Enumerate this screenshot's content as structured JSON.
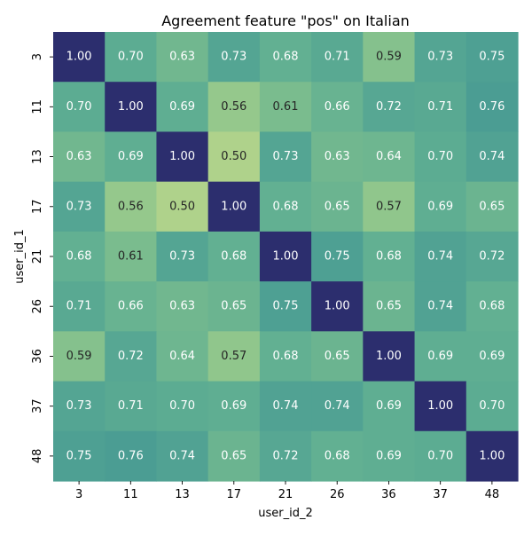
{
  "chart_data": {
    "type": "heatmap",
    "title": "Agreement feature \"pos\" on Italian",
    "xlabel": "user_id_2",
    "ylabel": "user_id_1",
    "x_categories": [
      "3",
      "11",
      "13",
      "17",
      "21",
      "26",
      "36",
      "37",
      "48"
    ],
    "y_categories": [
      "3",
      "11",
      "13",
      "17",
      "21",
      "26",
      "36",
      "37",
      "48"
    ],
    "values": [
      [
        1.0,
        0.7,
        0.63,
        0.73,
        0.68,
        0.71,
        0.59,
        0.73,
        0.75
      ],
      [
        0.7,
        1.0,
        0.69,
        0.56,
        0.61,
        0.66,
        0.72,
        0.71,
        0.76
      ],
      [
        0.63,
        0.69,
        1.0,
        0.5,
        0.73,
        0.63,
        0.64,
        0.7,
        0.74
      ],
      [
        0.73,
        0.56,
        0.5,
        1.0,
        0.68,
        0.65,
        0.57,
        0.69,
        0.65
      ],
      [
        0.68,
        0.61,
        0.73,
        0.68,
        1.0,
        0.75,
        0.68,
        0.74,
        0.72
      ],
      [
        0.71,
        0.66,
        0.63,
        0.65,
        0.75,
        1.0,
        0.65,
        0.74,
        0.68
      ],
      [
        0.59,
        0.72,
        0.64,
        0.57,
        0.68,
        0.65,
        1.0,
        0.69,
        0.69
      ],
      [
        0.73,
        0.71,
        0.7,
        0.69,
        0.74,
        0.74,
        0.69,
        1.0,
        0.7
      ],
      [
        0.75,
        0.76,
        0.74,
        0.65,
        0.72,
        0.68,
        0.69,
        0.7,
        1.0
      ]
    ],
    "value_format": "2 decimals",
    "colormap": "crest",
    "colorbar": false,
    "grid": false,
    "legend": "none"
  }
}
